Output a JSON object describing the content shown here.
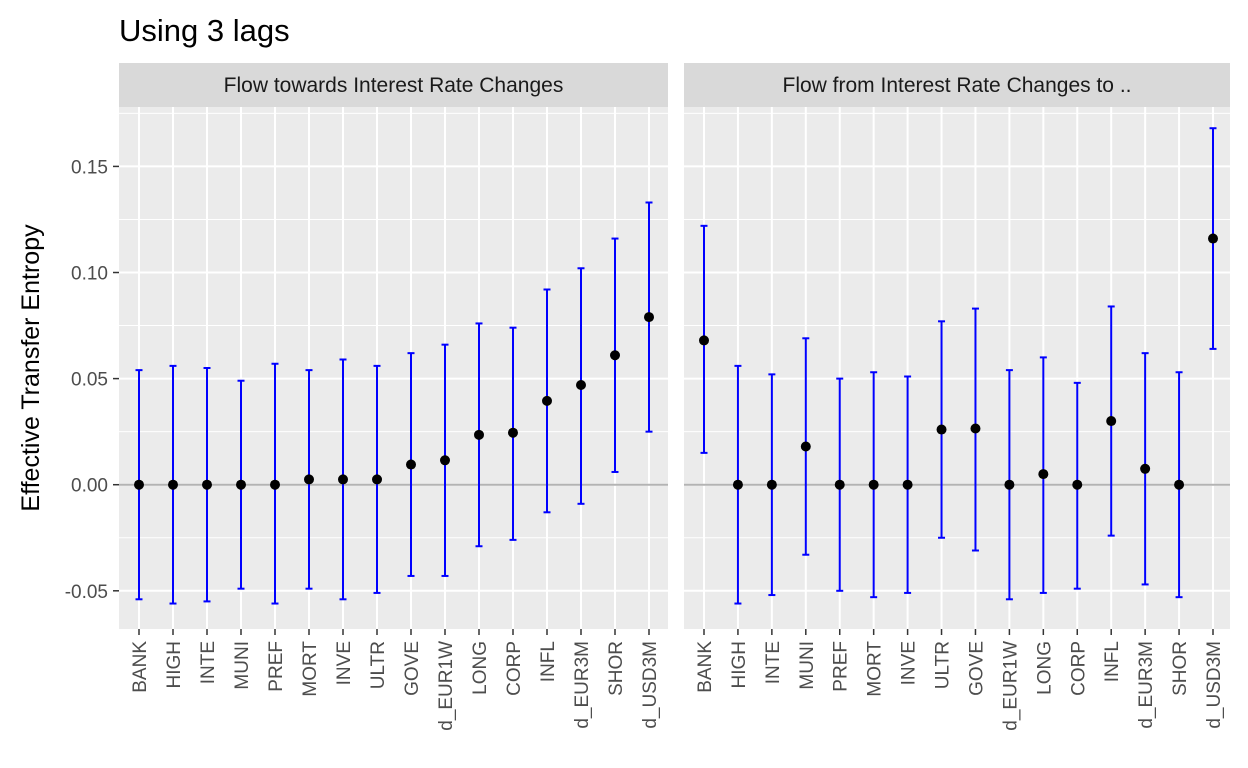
{
  "chart_data": {
    "type": "errorbar",
    "title": "Using 3 lags",
    "ylabel": "Effective Transfer Entropy",
    "xlabel": "",
    "ylim": [
      -0.068,
      0.178
    ],
    "yticks": [
      -0.05,
      0.0,
      0.05,
      0.1,
      0.15
    ],
    "ytick_labels": [
      "-0.05",
      "0.00",
      "0.05",
      "0.10",
      "0.15"
    ],
    "grid": true,
    "reference_line": 0,
    "colors": {
      "panel_bg": "#ebebeb",
      "strip_bg": "#d9d9d9",
      "grid": "#ffffff",
      "errorbar": "#0000ff",
      "point": "#000000",
      "zero_line": "#b3b3b3"
    },
    "panels": [
      {
        "strip": "Flow towards Interest Rate Changes",
        "categories": [
          "BANK",
          "HIGH",
          "INTE",
          "MUNI",
          "PREF",
          "MORT",
          "INVE",
          "ULTR",
          "GOVE",
          "d_EUR1W",
          "LONG",
          "CORP",
          "INFL",
          "d_EUR3M",
          "SHOR",
          "d_USD3M"
        ],
        "values": [
          0.0,
          0.0,
          0.0,
          0.0,
          0.0,
          0.0025,
          0.0025,
          0.0025,
          0.0095,
          0.0115,
          0.0235,
          0.0245,
          0.0395,
          0.047,
          0.061,
          0.079
        ],
        "lower": [
          -0.054,
          -0.056,
          -0.055,
          -0.049,
          -0.056,
          -0.049,
          -0.054,
          -0.051,
          -0.043,
          -0.043,
          -0.029,
          -0.026,
          -0.013,
          -0.009,
          0.006,
          0.025
        ],
        "upper": [
          0.054,
          0.056,
          0.055,
          0.049,
          0.057,
          0.054,
          0.059,
          0.056,
          0.062,
          0.066,
          0.076,
          0.074,
          0.092,
          0.102,
          0.116,
          0.133
        ]
      },
      {
        "strip": "Flow from Interest Rate Changes to ..",
        "categories": [
          "BANK",
          "HIGH",
          "INTE",
          "MUNI",
          "PREF",
          "MORT",
          "INVE",
          "ULTR",
          "GOVE",
          "d_EUR1W",
          "LONG",
          "CORP",
          "INFL",
          "d_EUR3M",
          "SHOR",
          "d_USD3M"
        ],
        "values": [
          0.068,
          0.0,
          0.0,
          0.018,
          0.0,
          0.0,
          0.0,
          0.026,
          0.0265,
          0.0,
          0.005,
          0.0,
          0.03,
          0.0075,
          0.0,
          0.116
        ],
        "lower": [
          0.015,
          -0.056,
          -0.052,
          -0.033,
          -0.05,
          -0.053,
          -0.051,
          -0.025,
          -0.031,
          -0.054,
          -0.051,
          -0.049,
          -0.024,
          -0.047,
          -0.053,
          0.064
        ],
        "upper": [
          0.122,
          0.056,
          0.052,
          0.069,
          0.05,
          0.053,
          0.051,
          0.077,
          0.083,
          0.054,
          0.06,
          0.048,
          0.084,
          0.062,
          0.053,
          0.168
        ]
      }
    ]
  }
}
